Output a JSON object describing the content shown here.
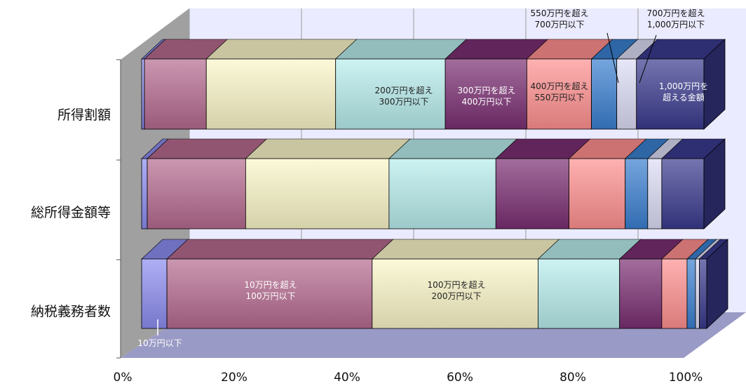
{
  "chart_data": {
    "type": "bar",
    "stacked": "100%",
    "orientation": "horizontal",
    "categories": [
      "所得割額",
      "総所得金額等",
      "納税義務者数"
    ],
    "series": [
      {
        "name": "10万円以下",
        "values": [
          0.5,
          1.0,
          4.5
        ]
      },
      {
        "name": "10万円を超え 100万円以下",
        "values": [
          11.0,
          17.5,
          36.5
        ]
      },
      {
        "name": "100万円を超え 200万円以下",
        "values": [
          23.0,
          25.5,
          29.5
        ]
      },
      {
        "name": "200万円を超え 300万円以下",
        "values": [
          19.5,
          19.0,
          14.5
        ]
      },
      {
        "name": "300万円を超え 400万円以下",
        "values": [
          14.5,
          13.0,
          7.5
        ]
      },
      {
        "name": "400万円を超え 550万円以下",
        "values": [
          11.5,
          10.0,
          4.5
        ]
      },
      {
        "name": "550万円を超え 700万円以下",
        "values": [
          4.5,
          4.0,
          1.5
        ]
      },
      {
        "name": "700万円を超え 1,000万円以下",
        "values": [
          3.5,
          2.5,
          0.7
        ]
      },
      {
        "name": "1,000万円を 超える金額",
        "values": [
          12.0,
          7.5,
          1.3
        ]
      }
    ],
    "xticks": [
      "0%",
      "20%",
      "40%",
      "60%",
      "80%",
      "100%"
    ],
    "xlim": [
      0,
      100
    ],
    "colors": [
      "#8c8cf0",
      "#b56a8f",
      "#fbf6c8",
      "#b8ecec",
      "#7a2e72",
      "#ff8f8f",
      "#3a7fd0",
      "#dcdcf6",
      "#3a3a8e"
    ],
    "annotations": {
      "seg_200_300": [
        "200万円を超え",
        "300万円以下"
      ],
      "seg_300_400": [
        "300万円を超え",
        "400万円以下"
      ],
      "seg_400_550": [
        "400万円を超え",
        "550万円以下"
      ],
      "seg_550_700": [
        "550万円を超え",
        "700万円以下"
      ],
      "seg_700_1000": [
        "700万円を超え",
        "1,000万円以下"
      ],
      "seg_1000": [
        "1,000万円を",
        "超える金額"
      ],
      "seg_10_100": [
        "10万円を超え",
        "100万円以下"
      ],
      "seg_100_200": [
        "100万円を超え",
        "200万円以下"
      ],
      "seg_under_10": [
        "10万円以下"
      ]
    }
  }
}
